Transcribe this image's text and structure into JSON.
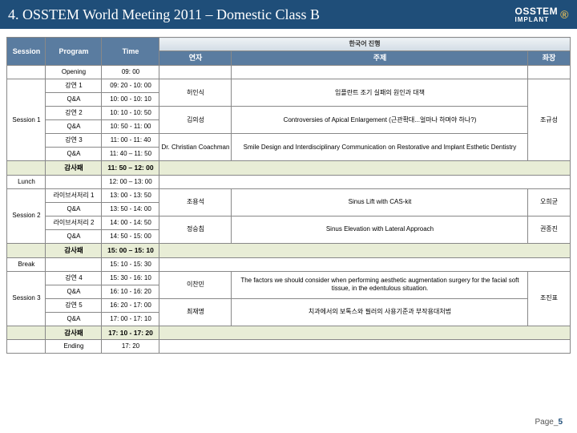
{
  "header": {
    "title": "4. OSSTEM World Meeting 2011 – Domestic Class B",
    "logo_main": "OSSTEM",
    "logo_sub": "IMPLANT",
    "logo_mark": "®"
  },
  "columns": {
    "session": "Session",
    "program": "Program",
    "time": "Time",
    "group": "한국어 진행",
    "speaker": "연자",
    "topic": "주제",
    "chair": "좌장"
  },
  "rows": {
    "opening_prog": "Opening",
    "opening_time": "09: 00",
    "s1_label": "Session 1",
    "l1_prog": "강연 1",
    "l1_time": "09: 20 - 10: 00",
    "q1_prog": "Q&A",
    "q1_time": "10: 00 - 10: 10",
    "sp1": "허인식",
    "tp1": "임플란트 조기 실패의 원인과 대책",
    "l2_prog": "강연 2",
    "l2_time": "10: 10 - 10: 50",
    "q2_prog": "Q&A",
    "q2_time": "10: 50 - 11: 00",
    "sp2": "김의성",
    "tp2": "Controversies of Apical Enlargement (근관확대...얼마나 하며야 하나?)",
    "chair1": "조규성",
    "l3_prog": "강연 3",
    "l3_time": "11: 00 - 11: 40",
    "q3_prog": "Q&A",
    "q3_time": "11: 40 – 11: 50",
    "sp3": "Dr. Christian Coachman",
    "tp3": "Smile Design and Interdisciplinary Communication on Restorative and Implant Esthetic Dentistry",
    "g1_prog": "감사패",
    "g1_time": "11: 50 – 12: 00",
    "lunch_label": "Lunch",
    "lunch_time": "12: 00 – 13: 00",
    "s2_label": "Session 2",
    "ls1_prog": "라이브서저리 1",
    "ls1_time": "13: 00 - 13: 50",
    "qs1_prog": "Q&A",
    "qs1_time": "13: 50 - 14: 00",
    "sp4": "조용석",
    "tp4": "Sinus Lift with CAS-kit",
    "chair2a": "오희균",
    "ls2_prog": "라이브서저리 2",
    "ls2_time": "14: 00 - 14: 50",
    "qs2_prog": "Q&A",
    "qs2_time": "14: 50 - 15: 00",
    "sp5": "정승침",
    "tp5": "Sinus Elevation with Lateral Approach",
    "chair2b": "권종진",
    "g2_prog": "감사패",
    "g2_time": "15: 00 – 15: 10",
    "break_label": "Break",
    "break_time": "15: 10 - 15: 30",
    "s3_label": "Session 3",
    "l4_prog": "강연 4",
    "l4_time": "15: 30 - 16: 10",
    "q4_prog": "Q&A",
    "q4_time": "16: 10 - 16: 20",
    "sp6": "이찬민",
    "tp6": "The factors we should consider when performing aesthetic augmentation surgery for the facial soft tissue, in the edentulous situation.",
    "l5_prog": "강연 5",
    "l5_time": "16: 20 - 17: 00",
    "q5_prog": "Q&A",
    "q5_time": "17: 00 - 17: 10",
    "sp7": "최재명",
    "tp7": "치과에서의 보톡스와 필러의 사용기준과 부작용대처법",
    "chair3": "조진표",
    "g3_prog": "감사패",
    "g3_time": "17: 10 - 17: 20",
    "end_prog": "Ending",
    "end_time": "17: 20"
  },
  "footer": {
    "label": "Page_",
    "num": "5"
  }
}
